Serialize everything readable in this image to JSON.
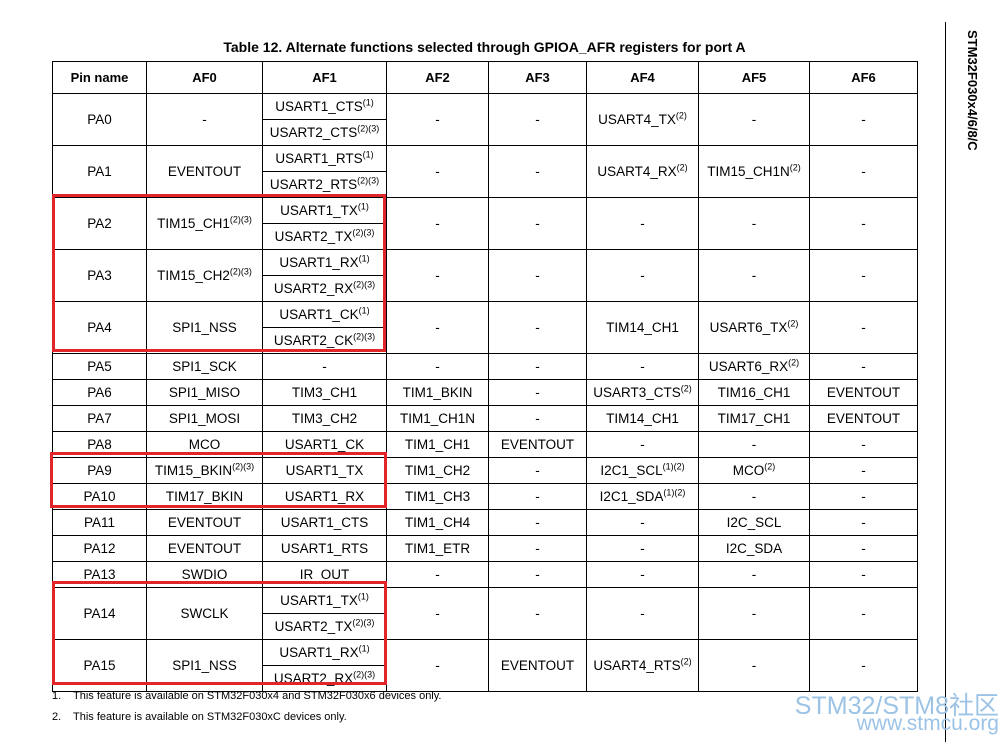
{
  "title": "Table 12. Alternate functions selected through GPIOA_AFR registers for port A",
  "side_label": "STM32F030x4/6/8/C",
  "table": {
    "headers": [
      "Pin name",
      "AF0",
      "AF1",
      "AF2",
      "AF3",
      "AF4",
      "AF5",
      "AF6"
    ],
    "rows": [
      [
        "PA0",
        "-",
        [
          [
            "USART1_CTS",
            "(1)"
          ],
          [
            "USART2_CTS",
            "(2)(3)"
          ]
        ],
        "-",
        "-",
        [
          [
            "USART4_TX",
            "(2)"
          ]
        ],
        "-",
        "-"
      ],
      [
        "PA1",
        "EVENTOUT",
        [
          [
            "USART1_RTS",
            "(1)"
          ],
          [
            "USART2_RTS",
            "(2)(3)"
          ]
        ],
        "-",
        "-",
        [
          [
            "USART4_RX",
            "(2)"
          ]
        ],
        [
          [
            "TIM15_CH1N",
            "(2)"
          ]
        ],
        "-"
      ],
      [
        "PA2",
        [
          [
            "TIM15_CH1",
            "(2)(3)"
          ]
        ],
        [
          [
            "USART1_TX",
            "(1)"
          ],
          [
            "USART2_TX",
            "(2)(3)"
          ]
        ],
        "-",
        "-",
        "-",
        "-",
        "-"
      ],
      [
        "PA3",
        [
          [
            "TIM15_CH2",
            "(2)(3)"
          ]
        ],
        [
          [
            "USART1_RX",
            "(1)"
          ],
          [
            "USART2_RX",
            "(2)(3)"
          ]
        ],
        "-",
        "-",
        "-",
        "-",
        "-"
      ],
      [
        "PA4",
        "SPI1_NSS",
        [
          [
            "USART1_CK",
            "(1)"
          ],
          [
            "USART2_CK",
            "(2)(3)"
          ]
        ],
        "-",
        "-",
        "TIM14_CH1",
        [
          [
            "USART6_TX",
            "(2)"
          ]
        ],
        "-"
      ],
      [
        "PA5",
        "SPI1_SCK",
        "-",
        "-",
        "-",
        "-",
        [
          [
            "USART6_RX",
            "(2)"
          ]
        ],
        "-"
      ],
      [
        "PA6",
        "SPI1_MISO",
        "TIM3_CH1",
        "TIM1_BKIN",
        "-",
        [
          [
            "USART3_CTS",
            "(2)"
          ]
        ],
        "TIM16_CH1",
        "EVENTOUT"
      ],
      [
        "PA7",
        "SPI1_MOSI",
        "TIM3_CH2",
        "TIM1_CH1N",
        "-",
        "TIM14_CH1",
        "TIM17_CH1",
        "EVENTOUT"
      ],
      [
        "PA8",
        "MCO",
        "USART1_CK",
        "TIM1_CH1",
        "EVENTOUT",
        "-",
        "-",
        "-"
      ],
      [
        "PA9",
        [
          [
            "TIM15_BKIN",
            "(2)(3)"
          ]
        ],
        "USART1_TX",
        "TIM1_CH2",
        "-",
        [
          [
            "I2C1_SCL",
            "(1)(2)"
          ]
        ],
        [
          [
            "MCO",
            "(2)"
          ]
        ],
        "-"
      ],
      [
        "PA10",
        "TIM17_BKIN",
        "USART1_RX",
        "TIM1_CH3",
        "-",
        [
          [
            "I2C1_SDA",
            "(1)(2)"
          ]
        ],
        "-",
        "-"
      ],
      [
        "PA11",
        "EVENTOUT",
        "USART1_CTS",
        "TIM1_CH4",
        "-",
        "-",
        "I2C_SCL",
        "-"
      ],
      [
        "PA12",
        "EVENTOUT",
        "USART1_RTS",
        "TIM1_ETR",
        "-",
        "-",
        "I2C_SDA",
        "-"
      ],
      [
        "PA13",
        "SWDIO",
        "IR_OUT",
        "-",
        "-",
        "-",
        "-",
        "-"
      ],
      [
        "PA14",
        "SWCLK",
        [
          [
            "USART1_TX",
            "(1)"
          ],
          [
            "USART2_TX",
            "(2)(3)"
          ]
        ],
        "-",
        "-",
        "-",
        "-",
        "-"
      ],
      [
        "PA15",
        "SPI1_NSS",
        [
          [
            "USART1_RX",
            "(1)"
          ],
          [
            "USART2_RX",
            "(2)(3)"
          ]
        ],
        "-",
        "EVENTOUT",
        [
          [
            "USART4_RTS",
            "(2)"
          ]
        ],
        "-",
        "-"
      ]
    ]
  },
  "notes": [
    [
      "1.",
      "This feature is available on STM32F030x4 and STM32F030x6 devices only."
    ],
    [
      "2.",
      "This feature is available on STM32F030xC devices only."
    ]
  ],
  "watermark": [
    "STM32/STM8社区",
    "www.stmcu.org"
  ]
}
